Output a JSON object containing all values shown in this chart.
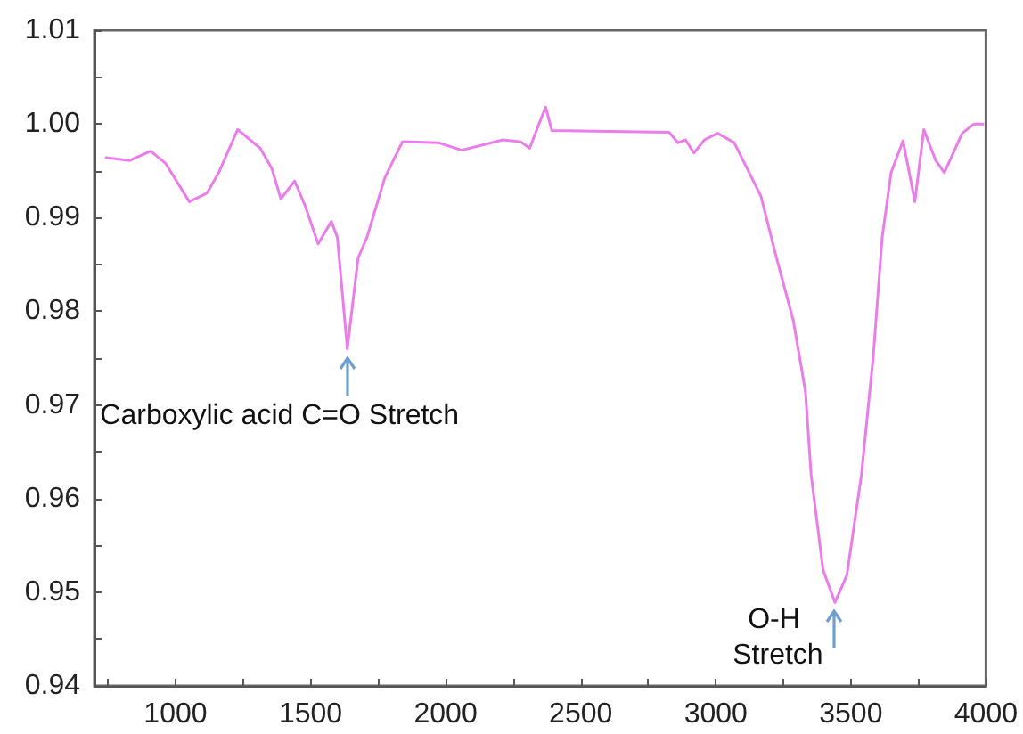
{
  "chart_data": {
    "type": "line",
    "x": [
      743,
      831,
      908,
      963,
      1051,
      1116,
      1160,
      1230,
      1314,
      1357,
      1390,
      1441,
      1478,
      1528,
      1577,
      1599,
      1636,
      1676,
      1709,
      1774,
      1840,
      1972,
      2059,
      2212,
      2278,
      2311,
      2340,
      2370,
      2393,
      2827,
      2860,
      2888,
      2919,
      2958,
      3007,
      3068,
      3134,
      3167,
      3222,
      3287,
      3332,
      3353,
      3397,
      3441,
      3485,
      3539,
      3583,
      3616,
      3649,
      3693,
      3737,
      3770,
      3814,
      3846,
      3912,
      3956,
      3989
    ],
    "series": [
      {
        "color": "#ea7de9",
        "values": [
          0.9964,
          0.9961,
          0.9971,
          0.9958,
          0.9917,
          0.9926,
          0.9948,
          0.9994,
          0.9974,
          0.9952,
          0.992,
          0.9939,
          0.9914,
          0.9872,
          0.9896,
          0.9879,
          0.976,
          0.9857,
          0.9879,
          0.9942,
          0.9981,
          0.998,
          0.9972,
          0.9983,
          0.9981,
          0.9974,
          0.9996,
          1.0018,
          0.9993,
          0.9991,
          0.998,
          0.9983,
          0.9969,
          0.9983,
          0.999,
          0.998,
          0.9942,
          0.9923,
          0.986,
          0.979,
          0.9714,
          0.9625,
          0.9524,
          0.9489,
          0.9518,
          0.9625,
          0.9752,
          0.9879,
          0.9948,
          0.9982,
          0.9917,
          0.9994,
          0.9961,
          0.9948,
          0.999,
          1.0,
          1.0
        ]
      }
    ],
    "xlim": [
      700,
      4000
    ],
    "xticks": [
      {
        "value": 750,
        "label": null
      },
      1000,
      {
        "value": 1250,
        "label": null
      },
      1500,
      {
        "value": 1750,
        "label": null
      },
      2000,
      {
        "value": 2250,
        "label": null
      },
      2500,
      {
        "value": 2750,
        "label": null
      },
      3000,
      {
        "value": 3250,
        "label": null
      },
      3500,
      {
        "value": 3750,
        "label": null
      },
      4000
    ],
    "ylim": [
      0.94,
      1.01
    ],
    "yticks": [
      0.94,
      {
        "value": 0.945,
        "label": null
      },
      0.95,
      {
        "value": 0.955,
        "label": null
      },
      0.96,
      {
        "value": 0.965,
        "label": null
      },
      0.97,
      {
        "value": 0.975,
        "label": null
      },
      0.98,
      {
        "value": 0.985,
        "label": null
      },
      0.99,
      {
        "value": 0.995,
        "label": null
      },
      {
        "value": 1,
        "label": "1.00"
      },
      {
        "value": 1.005,
        "label": null
      },
      1.01
    ],
    "annotations": [
      {
        "text": "Carboxylic acid C=O Stretch",
        "x": 1636,
        "y": 0.976
      },
      {
        "text": "O-H Stretch",
        "x": 3441,
        "y": 0.9489
      }
    ],
    "marker": "none",
    "line_style": "solid"
  }
}
